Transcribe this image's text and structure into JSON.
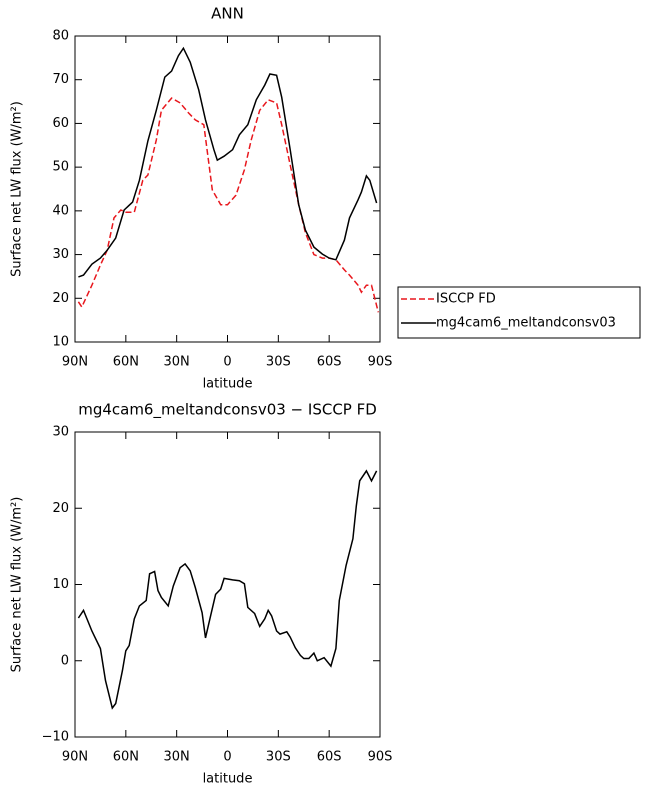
{
  "chart_data": [
    {
      "type": "line",
      "title": "ANN",
      "xlabel": "latitude",
      "ylabel": "Surface net LW flux (W/m²)",
      "xlim": [
        90,
        -90
      ],
      "xticks": [
        {
          "value": 90,
          "label": "90N"
        },
        {
          "value": 60,
          "label": "60N"
        },
        {
          "value": 30,
          "label": "30N"
        },
        0,
        {
          "value": -30,
          "label": "30S"
        },
        {
          "value": -60,
          "label": "60S"
        },
        {
          "value": -90,
          "label": "90S"
        }
      ],
      "ylim": [
        10,
        80
      ],
      "yticks": [
        10,
        20,
        30,
        40,
        50,
        60,
        70,
        80
      ],
      "legend": "outside right",
      "series": [
        {
          "name": "ISCCP FD",
          "color": "#e8171d",
          "linestyle": "dashed",
          "x": [
            88,
            86,
            80,
            75,
            71,
            67,
            63,
            60,
            55,
            50,
            47,
            42,
            39,
            33,
            28,
            23,
            19,
            14,
            9,
            4,
            0,
            -5,
            -10,
            -14,
            -19,
            -24,
            -29,
            -32,
            -37,
            -42,
            -46,
            -51,
            -56,
            -60,
            -64,
            -69,
            -72,
            -77,
            -79,
            -82,
            -85,
            -89
          ],
          "values": [
            19.2,
            18,
            23,
            27.6,
            31,
            38.4,
            40.2,
            39.7,
            39.7,
            47,
            48.2,
            56.2,
            63,
            65.8,
            64.7,
            62.4,
            60.8,
            59.7,
            44.8,
            41.4,
            41.4,
            43.6,
            49.4,
            56.2,
            63,
            65.4,
            64.7,
            59.7,
            50.5,
            41.4,
            35,
            30,
            29.2,
            29.2,
            28.8,
            26.5,
            25.3,
            23,
            21.4,
            23,
            23,
            16.8
          ]
        },
        {
          "name": "mg4cam6_meltandconsv03",
          "color": "#000000",
          "linestyle": "solid",
          "x": [
            88,
            85,
            80,
            75,
            71,
            66,
            61,
            56,
            52,
            47,
            42,
            37,
            33,
            29,
            26,
            22,
            17,
            13,
            8,
            6,
            2,
            -3,
            -7,
            -12,
            -17,
            -22,
            -25,
            -29,
            -32,
            -37,
            -42,
            -46,
            -51,
            -56,
            -60,
            -64,
            -69,
            -72,
            -77,
            -79,
            -82,
            -84,
            -88
          ],
          "values": [
            24.9,
            25.3,
            27.8,
            29.2,
            31,
            33.8,
            40.2,
            42,
            47,
            56,
            63,
            70.6,
            72,
            75.5,
            77.2,
            74,
            67.7,
            60.8,
            54,
            51.6,
            52.5,
            54,
            57.4,
            59.7,
            65.4,
            68.8,
            71.3,
            71,
            66,
            54,
            41.4,
            35.6,
            31.7,
            30.1,
            29.2,
            28.8,
            33.3,
            38.4,
            42.5,
            44.3,
            48,
            47,
            41.8
          ]
        }
      ]
    },
    {
      "type": "line",
      "title": "mg4cam6_meltandconsv03 − ISCCP FD",
      "xlabel": "latitude",
      "ylabel": "Surface net LW flux (W/m²)",
      "xlim": [
        90,
        -90
      ],
      "xticks": [
        {
          "value": 90,
          "label": "90N"
        },
        {
          "value": 60,
          "label": "60N"
        },
        {
          "value": 30,
          "label": "30N"
        },
        0,
        {
          "value": -30,
          "label": "30S"
        },
        {
          "value": -60,
          "label": "60S"
        },
        {
          "value": -90,
          "label": "90S"
        }
      ],
      "ylim": [
        -10,
        30
      ],
      "yticks": [
        {
          "value": -10,
          "label": "−10"
        },
        0,
        10,
        20,
        30
      ],
      "series": [
        {
          "color": "#000000",
          "linestyle": "solid",
          "x": [
            88,
            85,
            80,
            75,
            72,
            68,
            66,
            62,
            60,
            58,
            55,
            52,
            48,
            46,
            43,
            41,
            39,
            35,
            32,
            28,
            25,
            22,
            19,
            15,
            13,
            10,
            7,
            4,
            2,
            -3,
            -7,
            -10,
            -12,
            -16,
            -19,
            -22,
            -24,
            -26,
            -29,
            -31,
            -35,
            -37,
            -40,
            -43,
            -45,
            -48,
            -51,
            -53,
            -57,
            -61,
            -64,
            -66,
            -70,
            -74,
            -76,
            -78,
            -82,
            -85,
            -88
          ],
          "values": [
            5.6,
            6.6,
            3.9,
            1.6,
            -2.6,
            -6.2,
            -5.6,
            -1.3,
            1.3,
            2,
            5.5,
            7.2,
            7.9,
            11.4,
            11.7,
            9.2,
            8.3,
            7.2,
            9.8,
            12.2,
            12.7,
            11.8,
            9.6,
            6.3,
            3,
            5.9,
            8.7,
            9.4,
            10.8,
            10.6,
            10.5,
            10.1,
            7,
            6.2,
            4.5,
            5.5,
            6.6,
            5.9,
            3.9,
            3.5,
            3.8,
            3.1,
            1.7,
            0.7,
            0.3,
            0.3,
            1,
            0,
            0.4,
            -0.7,
            1.6,
            7.9,
            12.5,
            16,
            20.3,
            23.6,
            24.9,
            23.6,
            24.9
          ]
        }
      ]
    }
  ]
}
